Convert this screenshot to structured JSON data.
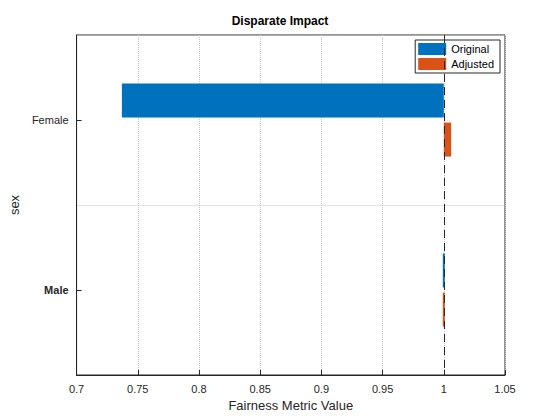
{
  "chart_data": {
    "type": "bar",
    "orientation": "horizontal",
    "title": "Disparate Impact",
    "xlabel": "Fairness Metric Value",
    "ylabel": "sex",
    "categories": [
      "Female",
      "Male"
    ],
    "series": [
      {
        "name": "Original",
        "color": "#0072bd",
        "values": [
          0.737,
          1.0
        ]
      },
      {
        "name": "Adjusted",
        "color": "#d95319",
        "values": [
          1.006,
          1.0
        ]
      }
    ],
    "baseline": 1,
    "xlim": [
      0.7,
      1.05
    ],
    "xticks": [
      0.7,
      0.75,
      0.8,
      0.85,
      0.9,
      0.95,
      1,
      1.05
    ],
    "grid": true,
    "legend": "northeast"
  }
}
